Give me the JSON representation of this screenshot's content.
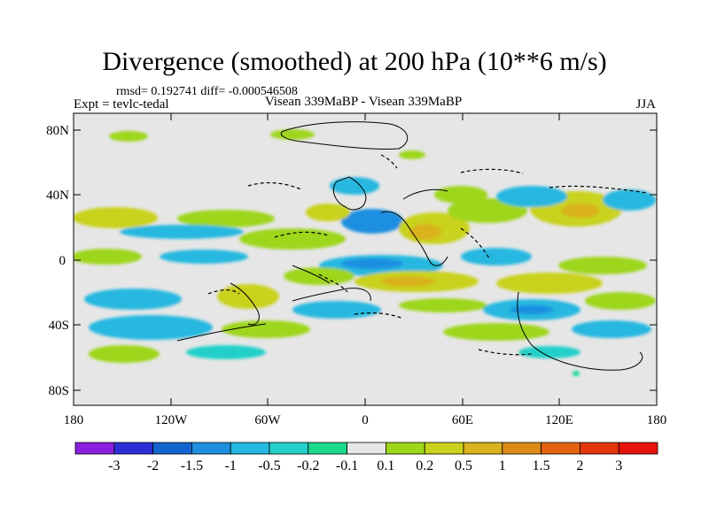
{
  "header": {
    "title": "Divergence (smoothed) at 200 hPa (10**6 m/s)",
    "stats": "rmsd= 0.192741 diff= -0.000546508",
    "experiment": "Expt = tevlc-tedal",
    "runs": "Visean 339MaBP - Visean 339MaBP",
    "season": "JJA"
  },
  "axes": {
    "y_ticks": [
      "80N",
      "40N",
      "0",
      "40S",
      "80S"
    ],
    "x_ticks": [
      "180",
      "120W",
      "60W",
      "0",
      "60E",
      "120E",
      "180"
    ]
  },
  "colorbar": {
    "colors": [
      "#8a1fe0",
      "#2d2fd6",
      "#1464cf",
      "#1f8fe0",
      "#25b8e0",
      "#22d0c9",
      "#19d98c",
      "#e6e6e6",
      "#9ed61a",
      "#c9d21c",
      "#d9b21e",
      "#dd8a16",
      "#e2620f",
      "#e6360c",
      "#e8140c"
    ],
    "labels": [
      "-3",
      "-2",
      "-1.5",
      "-1",
      "-0.5",
      "-0.2",
      "-0.1",
      "0.1",
      "0.2",
      "0.5",
      "1",
      "1.5",
      "2",
      "3"
    ]
  },
  "colors": {
    "background_field": "#e6e6e6",
    "coastline": "#000000"
  }
}
